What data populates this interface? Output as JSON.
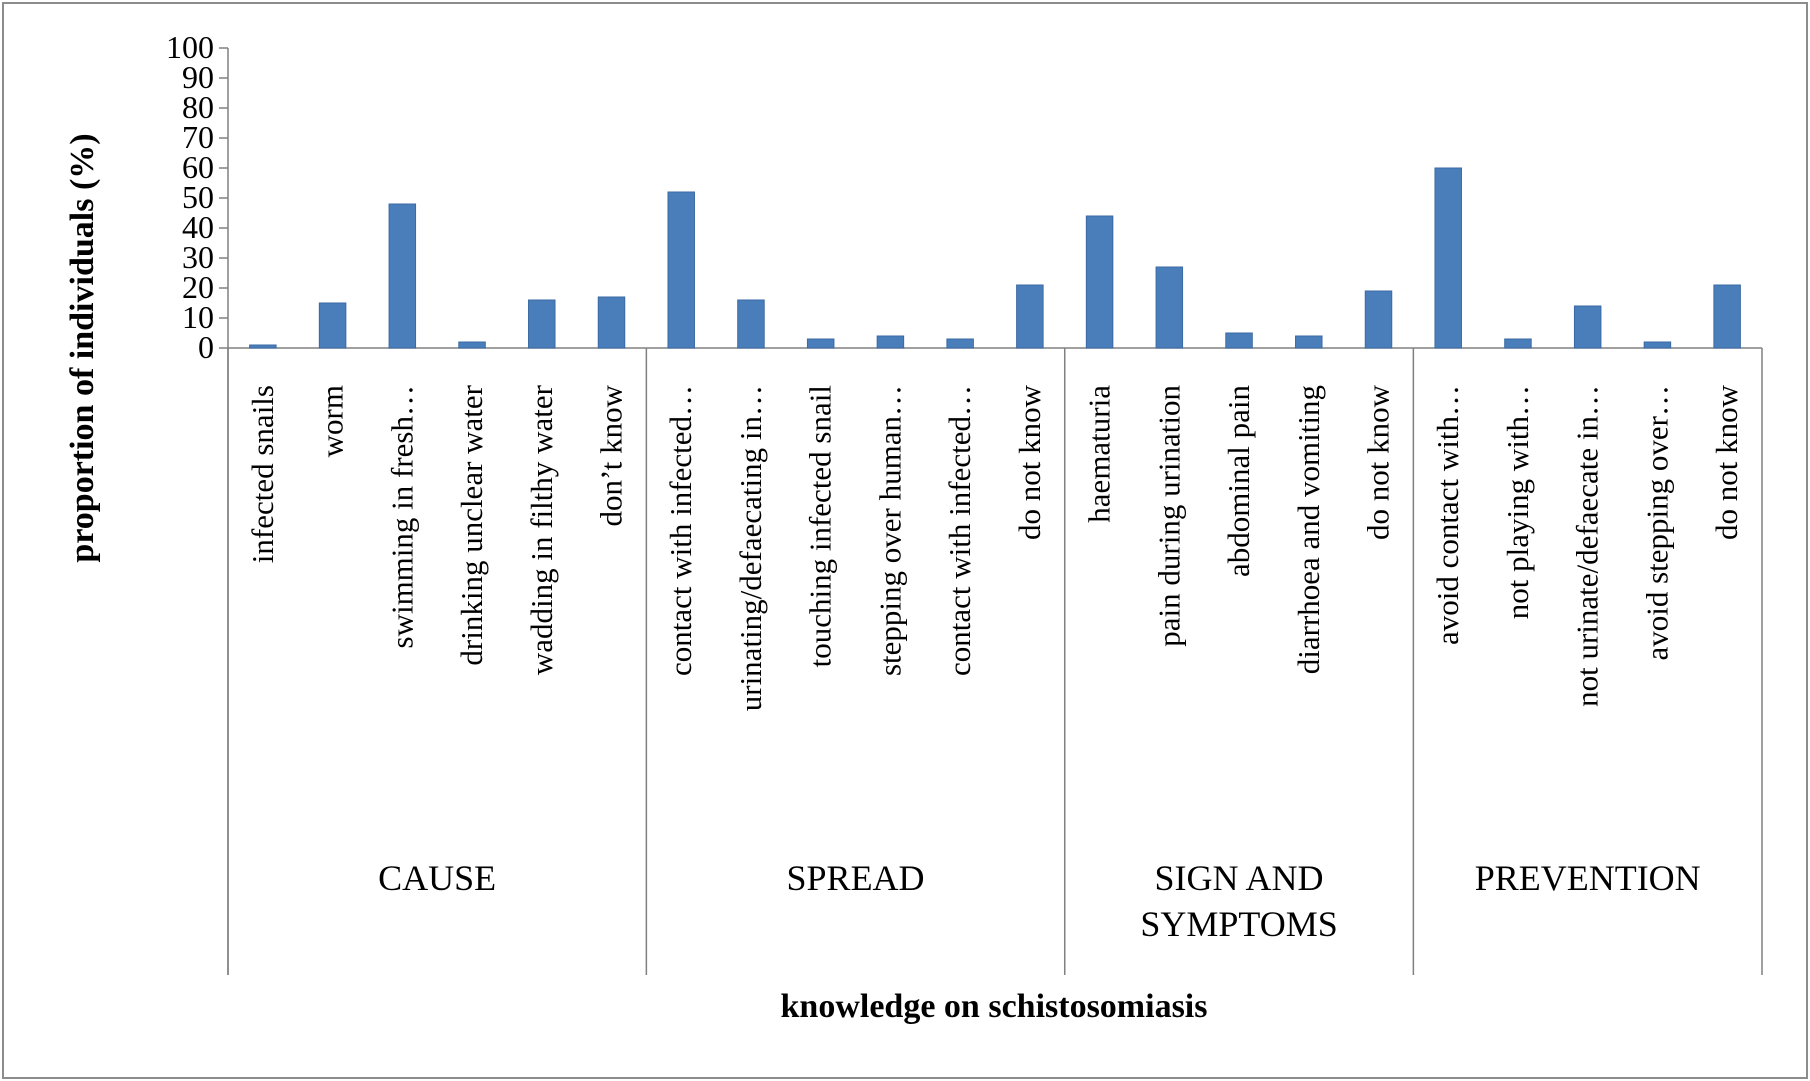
{
  "chart_data": {
    "type": "bar",
    "title": "",
    "xlabel": "knowledge on schistosomiasis",
    "ylabel": "proportion of individuals (%)",
    "ylim": [
      0,
      100
    ],
    "yticks": [
      0,
      10,
      20,
      30,
      40,
      50,
      60,
      70,
      80,
      90,
      100
    ],
    "grid": false,
    "colors": {
      "bar": "#4a7ebb",
      "axis": "#808080",
      "frame": "#8c8c8c"
    },
    "groups": [
      {
        "label": [
          "CAUSE"
        ],
        "categories": [
          "infected snails",
          "worm",
          "swimming in fresh…",
          "drinking unclear water",
          "wadding in filthy water",
          "don’t know"
        ],
        "values": [
          1,
          15,
          48,
          2,
          16,
          17
        ]
      },
      {
        "label": [
          "SPREAD"
        ],
        "categories": [
          "contact with infected…",
          "urinating/defaecating in…",
          "touching infected snail",
          "stepping over human…",
          "contact with infected…",
          "do not know"
        ],
        "values": [
          52,
          16,
          3,
          4,
          3,
          21
        ]
      },
      {
        "label": [
          "SIGN AND",
          "SYMPTOMS"
        ],
        "categories": [
          "haematuria",
          "pain during urination",
          "abdominal pain",
          "diarrhoea and vomiting",
          "do not know"
        ],
        "values": [
          44,
          27,
          5,
          4,
          19
        ]
      },
      {
        "label": [
          "PREVENTION"
        ],
        "categories": [
          "avoid contact with…",
          "not playing with…",
          "not urinate/defaecate in…",
          "avoid stepping over…",
          "do not know"
        ],
        "values": [
          60,
          3,
          14,
          2,
          21
        ]
      }
    ]
  }
}
